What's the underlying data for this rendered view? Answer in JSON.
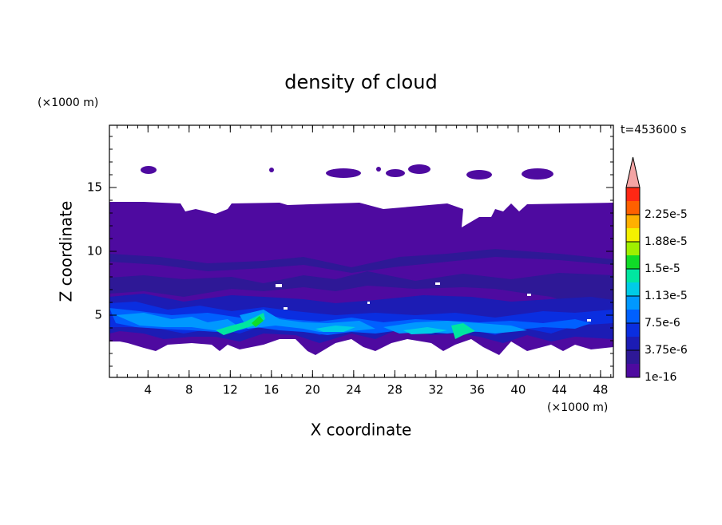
{
  "chart_data": {
    "type": "contour",
    "title": "density of cloud",
    "x_label": "X coordinate",
    "y_label": "Z coordinate",
    "x_unit": "(×1000 m)",
    "y_unit": "(×1000 m)",
    "time_label": "t=453600 s",
    "xlim": [
      0.25,
      49.25
    ],
    "ylim": [
      0.125,
      19.875
    ],
    "xticks": [
      4,
      8,
      12,
      16,
      20,
      24,
      28,
      32,
      36,
      40,
      44,
      48
    ],
    "yticks": [
      5,
      10,
      15
    ],
    "colorbar": {
      "ticks": [
        1e-16,
        {
          "value": 3.75e-06,
          "label": "3.75e-6"
        },
        {
          "value": 7.5e-06,
          "label": "7.5e-6"
        },
        {
          "value": 1.125e-05,
          "label": "1.13e-5"
        },
        {
          "value": 1.5e-05,
          "label": "1.5e-5"
        },
        {
          "value": 1.875e-05,
          "label": "1.88e-5"
        },
        {
          "value": 2.25e-05,
          "label": "2.25e-5"
        }
      ],
      "colors": [
        "#4e0aa0",
        "#2e1896",
        "#1c1cb4",
        "#0a2ee0",
        "#0060ff",
        "#0098ff",
        "#00cce6",
        "#00e6a0",
        "#10dc28",
        "#a0f000",
        "#f4f000",
        "#ffb000",
        "#ff6000",
        "#ff2814"
      ],
      "extend_color": "#f4a4a4"
    }
  }
}
